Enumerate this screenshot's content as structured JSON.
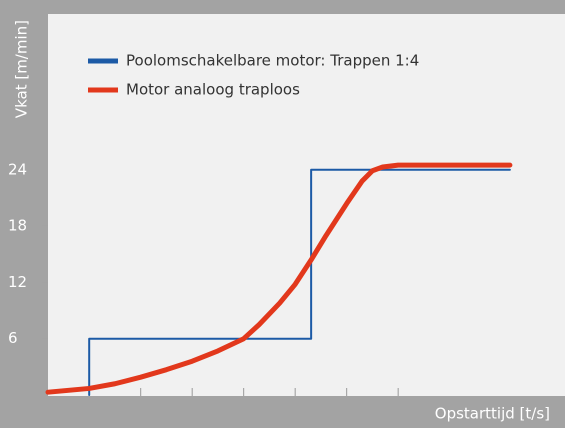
{
  "chart_data": {
    "type": "line",
    "ylabel": "Vkat [m/min]",
    "xlabel": "Opstarttijd [t/s]",
    "xlim": [
      0.2,
      10.24
    ],
    "ylim": [
      0,
      40
    ],
    "xticks": [
      1,
      2,
      3,
      4,
      5,
      6,
      7
    ],
    "yticks": [
      6,
      12,
      18,
      24
    ],
    "series": [
      {
        "name": "Poolomschakelbare motor: Trappen 1:4",
        "color": "#1c5aa6",
        "x": [
          1,
          1,
          5.31,
          5.31,
          9.17
        ],
        "values": [
          0,
          6,
          6,
          24,
          24
        ]
      },
      {
        "name": "Motor analoog traploos",
        "color": "#e2381c",
        "x": [
          0.2,
          0.6,
          1,
          1.5,
          2,
          2.5,
          3,
          3.5,
          4,
          4.3,
          4.7,
          5,
          5.31,
          5.6,
          6,
          6.3,
          6.5,
          6.7,
          7,
          8,
          9.17
        ],
        "values": [
          0.3,
          0.5,
          0.7,
          1.2,
          1.9,
          2.7,
          3.6,
          4.7,
          6.0,
          7.5,
          9.8,
          11.8,
          14.4,
          17.0,
          20.4,
          22.8,
          23.9,
          24.3,
          24.5,
          24.5,
          24.5
        ]
      }
    ]
  }
}
